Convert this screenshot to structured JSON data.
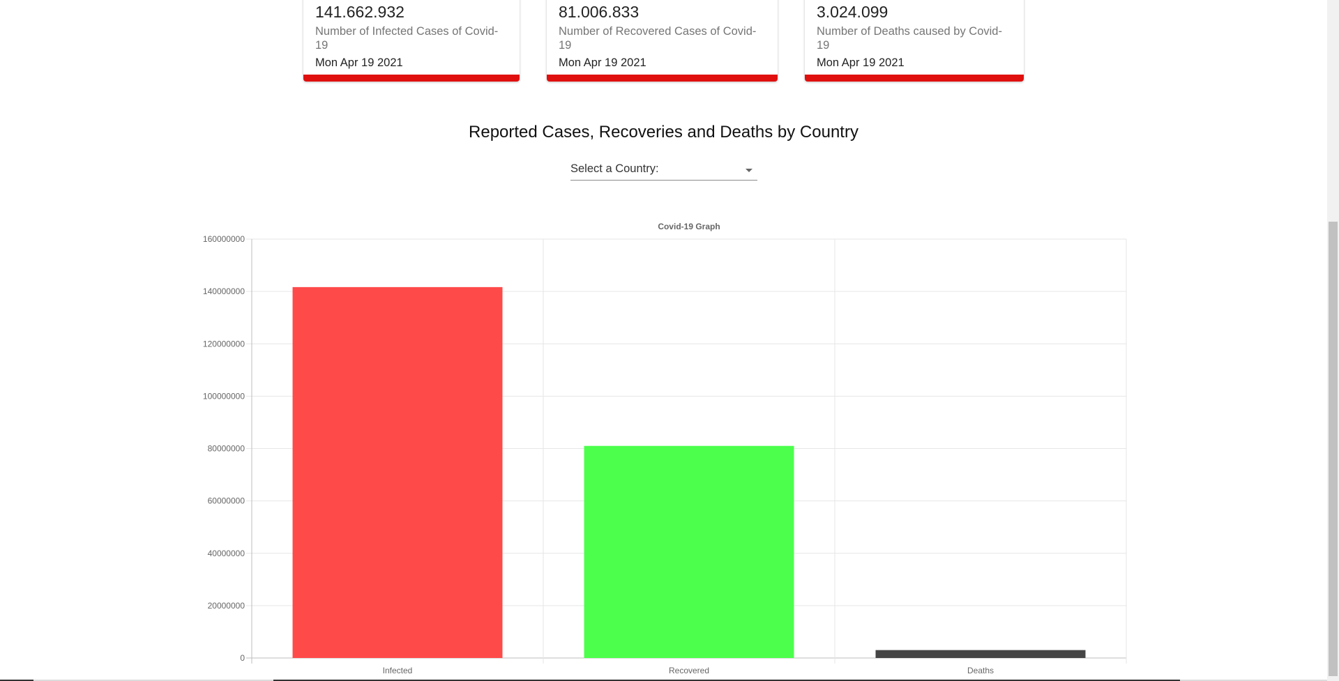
{
  "cards": [
    {
      "value": "141.662.932",
      "description": "Number of Infected Cases of Covid-19",
      "date": "Mon Apr 19 2021"
    },
    {
      "value": "81.006.833",
      "description": "Number of Recovered Cases of Covid-19",
      "date": "Mon Apr 19 2021"
    },
    {
      "value": "3.024.099",
      "description": "Number of Deaths caused by Covid-19",
      "date": "Mon Apr 19 2021"
    }
  ],
  "section_title": "Reported Cases, Recoveries and Deaths by Country",
  "country_select": {
    "label": "Select a Country:"
  },
  "chart_data": {
    "type": "bar",
    "title": "Covid-19 Graph",
    "categories": [
      "Infected",
      "Recovered",
      "Deaths"
    ],
    "values": [
      141662932,
      81006833,
      3024099
    ],
    "colors": [
      "#ff4a4a",
      "#4cff4c",
      "#454545"
    ],
    "ylim": [
      0,
      160000000
    ],
    "yticks": [
      "0",
      "20000000",
      "40000000",
      "60000000",
      "80000000",
      "100000000",
      "120000000",
      "140000000",
      "160000000"
    ],
    "grid": true,
    "legend": "none"
  }
}
